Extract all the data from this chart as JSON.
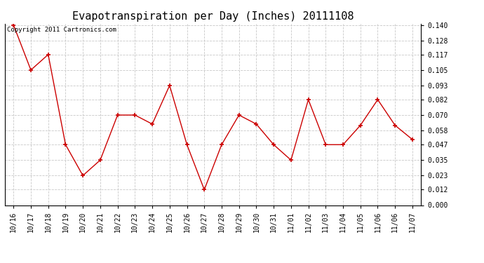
{
  "title": "Evapotranspiration per Day (Inches) 20111108",
  "copyright_text": "Copyright 2011 Cartronics.com",
  "x_labels": [
    "10/16",
    "10/17",
    "10/18",
    "10/19",
    "10/20",
    "10/21",
    "10/22",
    "10/23",
    "10/24",
    "10/25",
    "10/26",
    "10/27",
    "10/28",
    "10/29",
    "10/30",
    "10/31",
    "11/01",
    "11/02",
    "11/03",
    "11/04",
    "11/05",
    "11/06",
    "11/06",
    "11/07"
  ],
  "y_values": [
    0.14,
    0.105,
    0.117,
    0.047,
    0.023,
    0.035,
    0.07,
    0.07,
    0.063,
    0.093,
    0.047,
    0.012,
    0.047,
    0.07,
    0.063,
    0.047,
    0.035,
    0.082,
    0.047,
    0.047,
    0.062,
    0.082,
    0.062,
    0.051
  ],
  "yticks": [
    0.0,
    0.012,
    0.023,
    0.035,
    0.047,
    0.058,
    0.07,
    0.082,
    0.093,
    0.105,
    0.117,
    0.128,
    0.14
  ],
  "line_color": "#cc0000",
  "marker": "+",
  "marker_color": "#cc0000",
  "bg_color": "#ffffff",
  "grid_color": "#c8c8c8",
  "ylim": [
    0.0,
    0.14
  ],
  "title_fontsize": 11,
  "tick_fontsize": 7,
  "ytick_fontsize": 7,
  "copyright_fontsize": 6.5
}
